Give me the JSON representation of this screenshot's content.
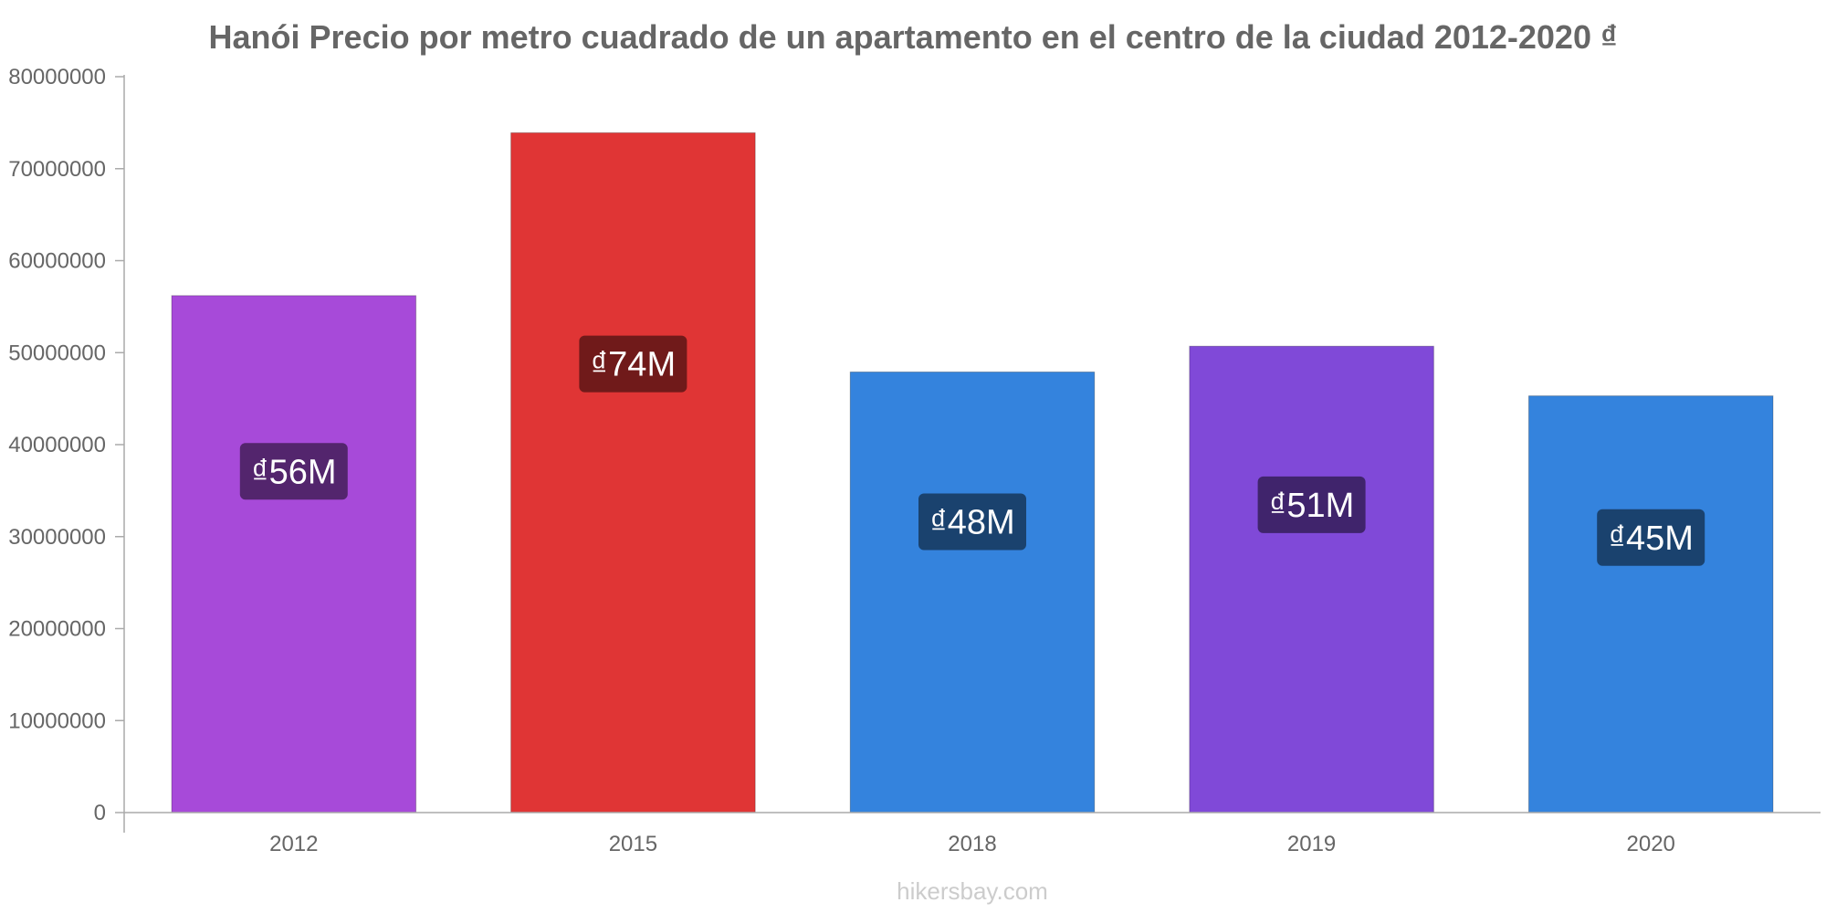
{
  "chart_data": {
    "type": "bar",
    "title": "Hanói Precio por metro cuadrado de un apartamento en el centro de la ciudad 2012-2020 ₫",
    "categories": [
      "2012",
      "2015",
      "2018",
      "2019",
      "2020"
    ],
    "values": [
      56200000,
      73900000,
      47900000,
      50700000,
      45300000
    ],
    "value_labels": [
      "₫56M",
      "₫74M",
      "₫48M",
      "₫51M",
      "₫45M"
    ],
    "bar_colors": [
      "#a74ad9",
      "#e03535",
      "#3483dd",
      "#8049d8",
      "#3483dd"
    ],
    "label_bg_colors": [
      "#53256d",
      "#701a1a",
      "#1a426e",
      "#40246c",
      "#1a426e"
    ],
    "ylim": [
      0,
      80000000
    ],
    "yticks": [
      "0",
      "10000000",
      "20000000",
      "30000000",
      "40000000",
      "50000000",
      "60000000",
      "70000000",
      "80000000"
    ],
    "xlabel": "",
    "ylabel": "",
    "grid": false,
    "legend": "none"
  },
  "source": "hikersbay.com",
  "colors": {
    "axis": "#aaaaaa",
    "text": "#666666",
    "source": "#cccccc"
  }
}
